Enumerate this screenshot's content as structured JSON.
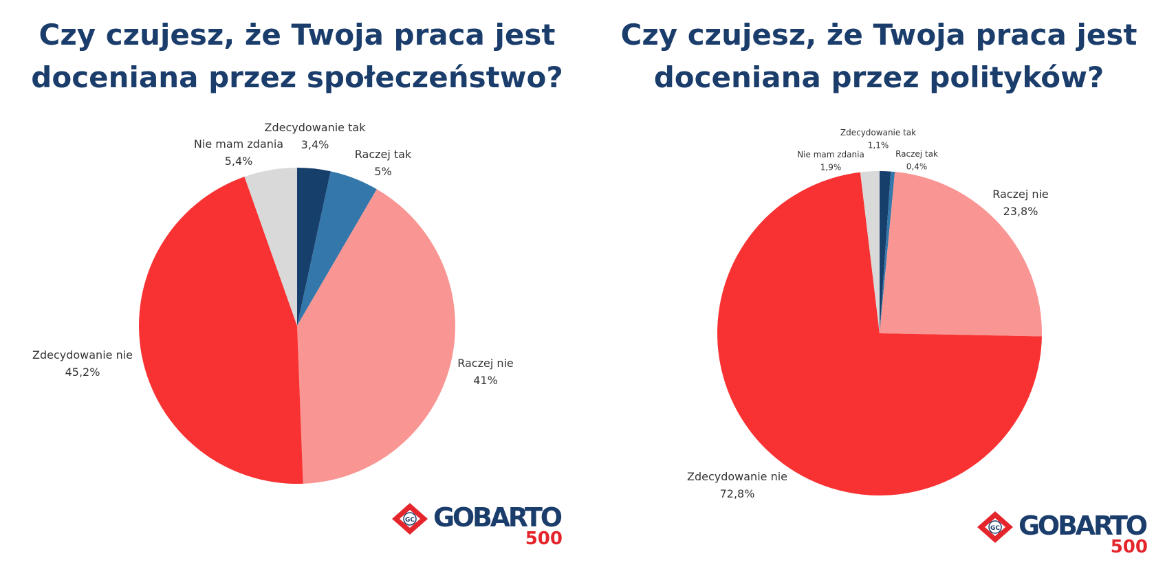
{
  "chart_data": [
    {
      "type": "pie",
      "title": "Czy czujesz, że Twoja praca jest doceniana przez społeczeństwo?",
      "title_lines": [
        "Czy czujesz, że Twoja praca jest",
        "doceniana przez społeczeństwo?"
      ],
      "categories": [
        "Zdecydowanie tak",
        "Raczej tak",
        "Raczej nie",
        "Zdecydowanie nie",
        "Nie mam zdania"
      ],
      "values": [
        3.4,
        5,
        41,
        45.2,
        5.4
      ],
      "value_labels": [
        "3,4%",
        "5%",
        "41%",
        "45,2%",
        "5,4%"
      ],
      "colors": [
        "#173f6b",
        "#3477aa",
        "#f99693",
        "#f83232",
        "#d9d9d9"
      ]
    },
    {
      "type": "pie",
      "title": "Czy czujesz, że Twoja praca jest doceniana przez polityków?",
      "title_lines": [
        "Czy czujesz, że Twoja praca jest",
        "doceniana przez polityków?"
      ],
      "categories": [
        "Zdecydowanie tak",
        "Raczej tak",
        "Raczej nie",
        "Zdecydowanie nie",
        "Nie mam zdania"
      ],
      "values": [
        1.1,
        0.4,
        23.8,
        72.8,
        1.9
      ],
      "value_labels": [
        "1,1%",
        "0,4%",
        "23,8%",
        "72,8%",
        "1,9%"
      ],
      "colors": [
        "#173f6b",
        "#3477aa",
        "#f99693",
        "#f83232",
        "#d9d9d9"
      ]
    }
  ],
  "logo": {
    "name": "GOBARTO",
    "number": "500",
    "badge": "GC",
    "colors": {
      "navy": "#1b3d6b",
      "red": "#e4262c"
    }
  }
}
